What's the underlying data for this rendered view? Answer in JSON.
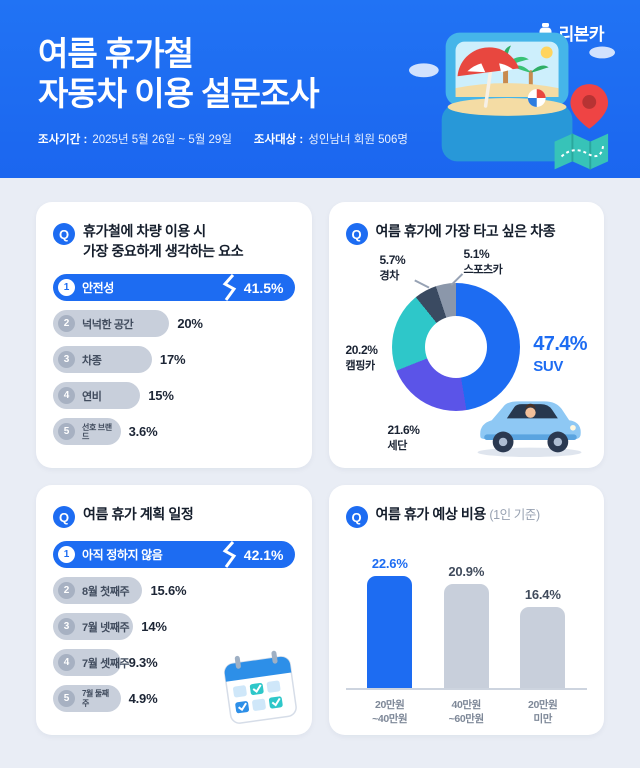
{
  "header": {
    "logo_text": "리본카",
    "title_line1": "여름 휴가철",
    "title_line2": "자동차 이용 설문조사",
    "period_label": "조사기간 :",
    "period_value": "2025년 5월 26일 ~ 5월 29일",
    "target_label": "조사대상 :",
    "target_value": "성인남녀 회원 506명"
  },
  "q_badge": "Q",
  "colors": {
    "primary_blue": "#1d6cf2",
    "bar_gray": "#c8cfdb",
    "donut_suv": "#1d6cf2",
    "donut_sedan": "#5b54e8",
    "donut_camping": "#2ec7c9",
    "donut_kei": "#3a4a61",
    "donut_sports": "#8b97aa"
  },
  "chart_data": [
    {
      "type": "bar",
      "orientation": "horizontal",
      "title_line1": "휴가철에 차량 이용 시",
      "title_line2": "가장 중요하게 생각하는 요소",
      "unit": "%",
      "items": [
        {
          "rank": "1",
          "label": "안전성",
          "value": 41.5,
          "value_label": "41.5%",
          "highlight": true
        },
        {
          "rank": "2",
          "label": "넉넉한 공간",
          "value": 20,
          "value_label": "20%"
        },
        {
          "rank": "3",
          "label": "차종",
          "value": 17,
          "value_label": "17%"
        },
        {
          "rank": "4",
          "label": "연비",
          "value": 15,
          "value_label": "15%"
        },
        {
          "rank": "5",
          "label": "선호 브랜드",
          "value": 3.6,
          "value_label": "3.6%"
        }
      ]
    },
    {
      "type": "pie",
      "title": "여름 휴가에 가장 타고 싶은 차종",
      "unit": "%",
      "slices": [
        {
          "label": "SUV",
          "value": 47.4,
          "value_label": "47.4%",
          "color": "#1d6cf2"
        },
        {
          "label": "세단",
          "value": 21.6,
          "value_label": "21.6%",
          "color": "#5b54e8"
        },
        {
          "label": "캠핑카",
          "value": 20.2,
          "value_label": "20.2%",
          "color": "#2ec7c9"
        },
        {
          "label": "경차",
          "value": 5.7,
          "value_label": "5.7%",
          "color": "#3a4a61"
        },
        {
          "label": "스포츠카",
          "value": 5.1,
          "value_label": "5.1%",
          "color": "#8b97aa"
        }
      ]
    },
    {
      "type": "bar",
      "orientation": "horizontal",
      "title": "여름 휴가 계획 일정",
      "unit": "%",
      "items": [
        {
          "rank": "1",
          "label": "아직 정하지 않음",
          "value": 42.1,
          "value_label": "42.1%",
          "highlight": true
        },
        {
          "rank": "2",
          "label": "8월 첫째주",
          "value": 15.6,
          "value_label": "15.6%"
        },
        {
          "rank": "3",
          "label": "7월 넷째주",
          "value": 14,
          "value_label": "14%"
        },
        {
          "rank": "4",
          "label": "7월 셋째주",
          "value": 9.3,
          "value_label": "9.3%"
        },
        {
          "rank": "5",
          "label": "7월 둘째주",
          "value": 4.9,
          "value_label": "4.9%"
        }
      ]
    },
    {
      "type": "bar",
      "orientation": "vertical",
      "title": "여름 휴가 예상 비용",
      "title_suffix": "(1인 기준)",
      "unit": "%",
      "items": [
        {
          "label_line1": "20만원",
          "label_line2": "~40만원",
          "value": 22.6,
          "value_label": "22.6%",
          "highlight": true
        },
        {
          "label_line1": "40만원",
          "label_line2": "~60만원",
          "value": 20.9,
          "value_label": "20.9%"
        },
        {
          "label_line1": "20만원",
          "label_line2": "미만",
          "value": 16.4,
          "value_label": "16.4%"
        }
      ]
    }
  ]
}
